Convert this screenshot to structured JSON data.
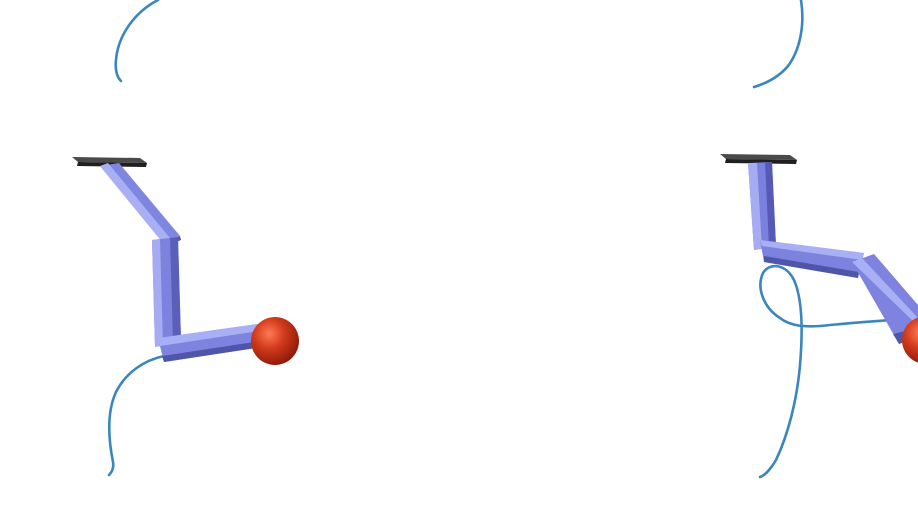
{
  "scene": {
    "background": "#ffffff",
    "colors": {
      "trajectory": "#3a86bd",
      "link_light": "#a6acf2",
      "link_mid": "#7a80de",
      "link_dark": "#4e54a8",
      "base_plate": "#2b2b2b",
      "end_effector": "#c42a14"
    },
    "panels": [
      {
        "name": "left-arm",
        "links": 3,
        "end_effector": "red-ball"
      },
      {
        "name": "right-arm",
        "links": 3,
        "end_effector": "red-ball"
      }
    ]
  }
}
